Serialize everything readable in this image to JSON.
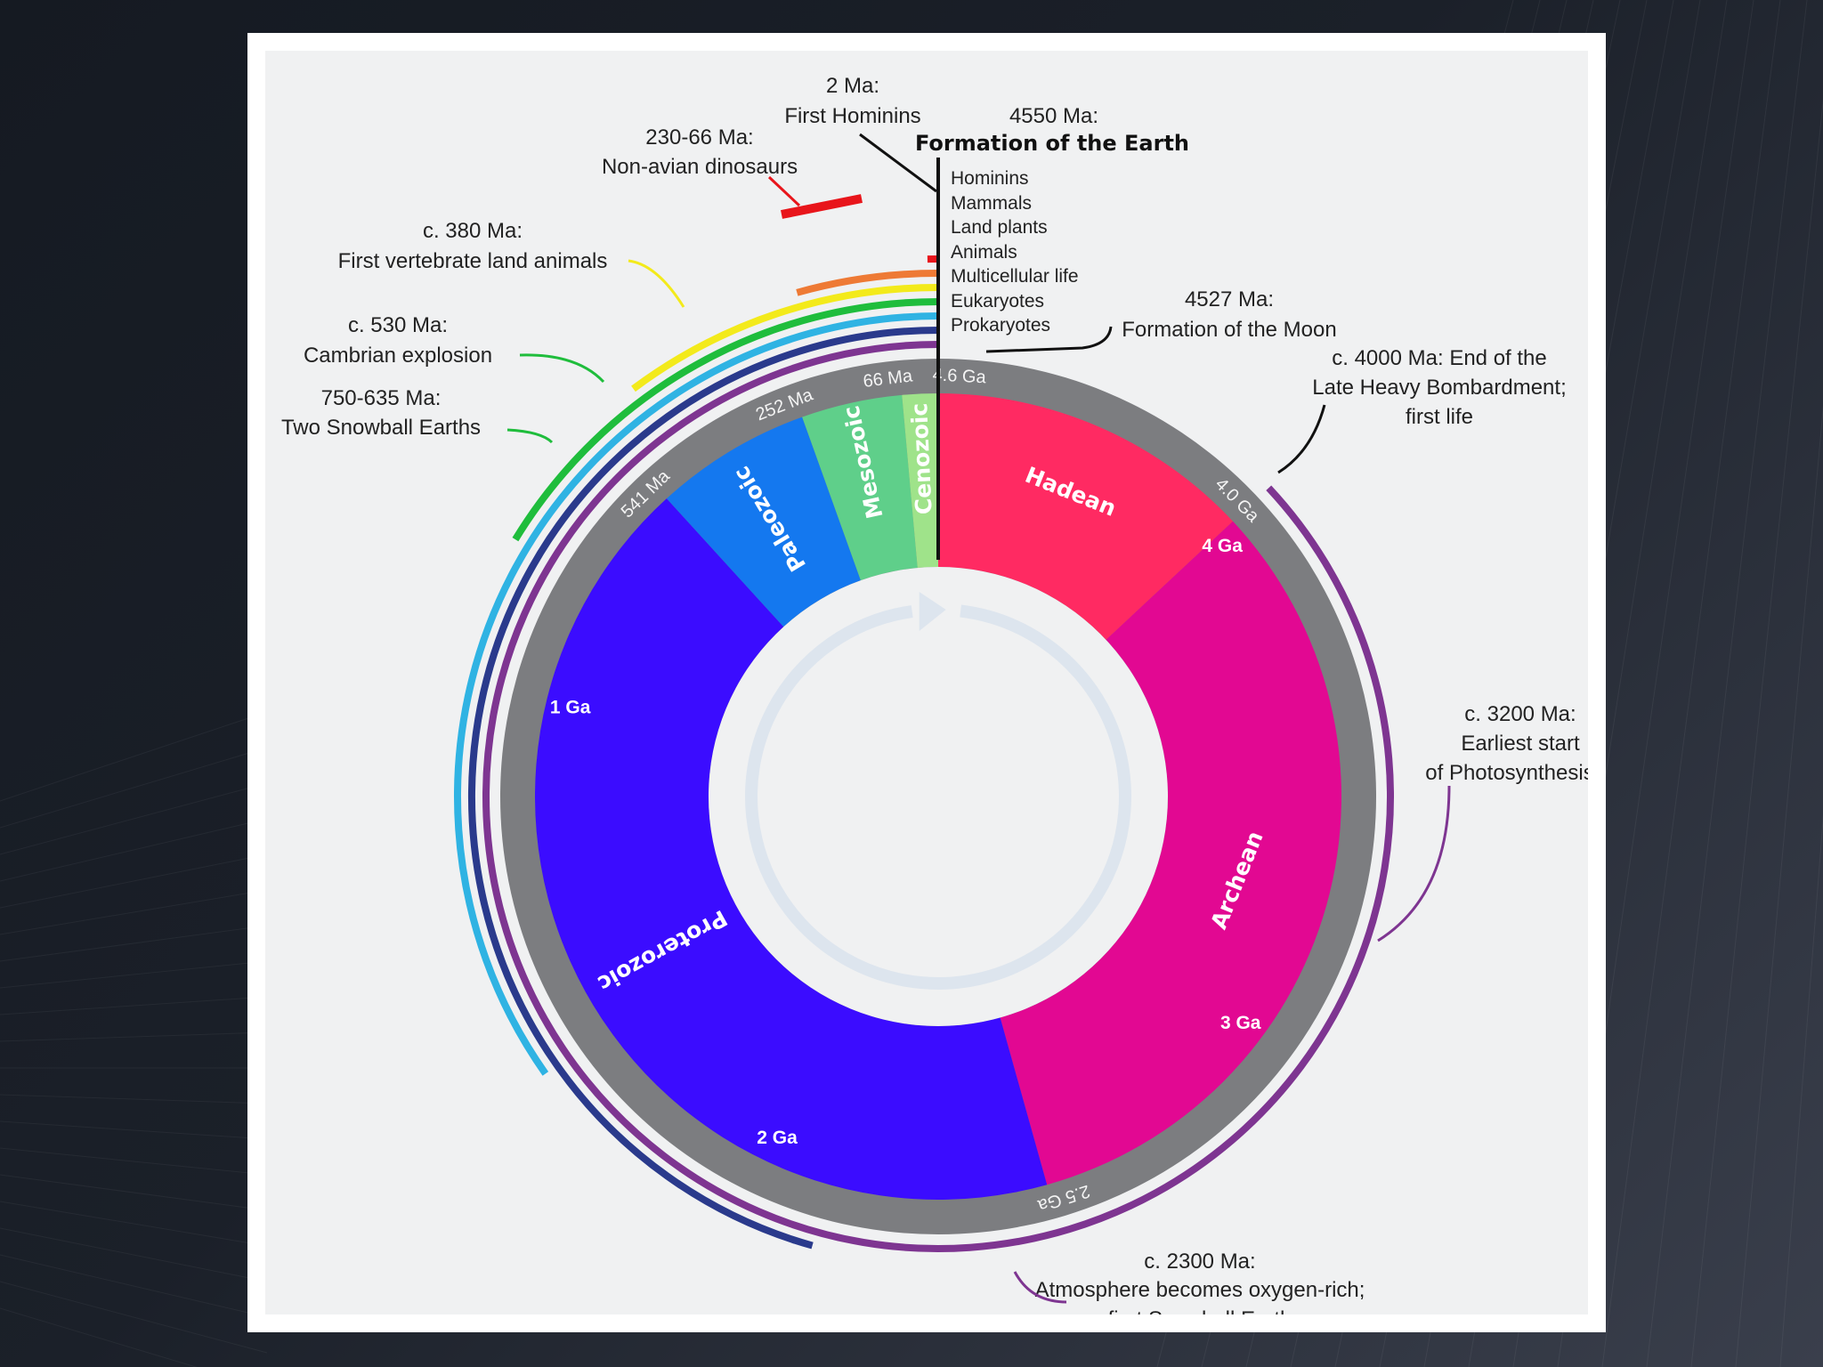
{
  "colors": {
    "hadean": "#ff2a62",
    "archean": "#e20892",
    "proterozoic": "#3b0cff",
    "paleozoic": "#1478ef",
    "mesozoic": "#5fcf8a",
    "cenozoic": "#9fe38a",
    "ring": "#7c7d80",
    "arrow": "#dde5ee"
  },
  "start_label": {
    "time": "4550 Ma:",
    "event": "Formation of the Earth"
  },
  "life_stack": [
    "Hominins",
    "Mammals",
    "Land plants",
    "Animals",
    "Multicellular life",
    "Eukaryotes",
    "Prokaryotes"
  ],
  "eons": [
    {
      "name": "Hadean",
      "color": "#ff2a62",
      "start_ma": 4600,
      "end_ma": 4000
    },
    {
      "name": "Archean",
      "color": "#e20892",
      "start_ma": 4000,
      "end_ma": 2500
    },
    {
      "name": "Proterozoic",
      "color": "#3b0cff",
      "start_ma": 2500,
      "end_ma": 541
    },
    {
      "name": "Paleozoic",
      "color": "#1478ef",
      "start_ma": 541,
      "end_ma": 252
    },
    {
      "name": "Mesozoic",
      "color": "#5fcf8a",
      "start_ma": 252,
      "end_ma": 66
    },
    {
      "name": "Cenozoic",
      "color": "#9fe38a",
      "start_ma": 66,
      "end_ma": 0
    }
  ],
  "ring_ticks": [
    {
      "text": "4.6 Ga",
      "ma": 0
    },
    {
      "text": "66 Ma",
      "ma": 66
    },
    {
      "text": "252 Ma",
      "ma": 252
    },
    {
      "text": "541 Ma",
      "ma": 541
    },
    {
      "text": "4.0 Ga",
      "ma": 4000
    },
    {
      "text": "2.5 Ga",
      "ma": 2500
    }
  ],
  "inner_ticks": [
    {
      "text": "4 Ga",
      "ma": 4000
    },
    {
      "text": "3 Ga",
      "ma": 3000
    },
    {
      "text": "2 Ga",
      "ma": 2000
    },
    {
      "text": "1 Ga",
      "ma": 1000
    }
  ],
  "life_arcs": [
    {
      "name": "Prokaryotes",
      "color": "#7e3591",
      "start_ma": 4000,
      "end_ma": 0
    },
    {
      "name": "Eukaryotes",
      "color": "#2a3a8c",
      "start_ma": 2100,
      "end_ma": 0
    },
    {
      "name": "Multicellular life",
      "color": "#2fb3e3",
      "start_ma": 1600,
      "end_ma": 0
    },
    {
      "name": "Animals",
      "color": "#1fbd3c",
      "start_ma": 750,
      "end_ma": 0
    },
    {
      "name": "Land plants",
      "color": "#f3ea1b",
      "start_ma": 470,
      "end_ma": 0
    },
    {
      "name": "Mammals",
      "color": "#ee7a35",
      "start_ma": 200,
      "end_ma": 0
    },
    {
      "name": "Hominins",
      "color": "#e8151b",
      "start_ma": 2,
      "end_ma": 0
    }
  ],
  "events": [
    {
      "time": "2 Ma:",
      "text": "First Hominins"
    },
    {
      "time": "230-66 Ma:",
      "text": "Non-avian dinosaurs"
    },
    {
      "time": "c. 380 Ma:",
      "text": "First vertebrate land animals"
    },
    {
      "time": "c. 530 Ma:",
      "text": "Cambrian explosion"
    },
    {
      "time": "750-635 Ma:",
      "text": "Two Snowball Earths"
    },
    {
      "time": "4527 Ma:",
      "text": "Formation of the Moon"
    },
    {
      "time": "c. 4000 Ma: End of the",
      "text": "Late Heavy Bombardment;",
      "text2": "first life"
    },
    {
      "time": "c. 3200 Ma:",
      "text": "Earliest start",
      "text2": "of Photosynthesis"
    },
    {
      "time": "c. 2300 Ma:",
      "text": "Atmosphere becomes oxygen-rich;",
      "text2": "first Snowball Earth"
    }
  ]
}
